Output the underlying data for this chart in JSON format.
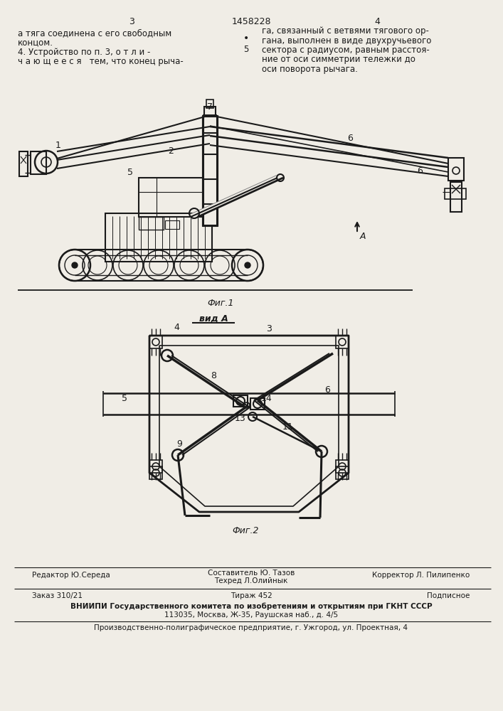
{
  "background": "#f0ede6",
  "lc": "#1a1a1a",
  "tc": "#1a1a1a",
  "page_left": "3",
  "patent": "1458228",
  "page_right": "4",
  "col1_lines": [
    "а тяга соединена с его свободным",
    "концом."
  ],
  "col2_lines": [
    "га, связанный с ветвями тягового ор-",
    "гана, выполнен в виде двухручьевого",
    "сектора с радиусом, равным расстоя-",
    "ние от оси симметрии тележки до",
    "оси поворота рычага."
  ],
  "claim4_lines": [
    "4. Устройство по п. 3, о т л и -",
    "ч а ю щ е е с я   тем, что конец рыча-"
  ],
  "num5": "5",
  "fig1_cap": "Фиг.1",
  "fig2_cap": "Фиг.2",
  "vid_a": "вид А",
  "arrow_label": "А",
  "footer_editor": "Редактор Ю.Середа",
  "footer_comp_top": "Составитель Ю. Тазов",
  "footer_comp_bot": "Техред Л.Олийнык",
  "footer_corr": "Корректор Л. Пилипенко",
  "footer_order": "Заказ 310/21",
  "footer_tirazh": "Тираж 452",
  "footer_podsip": "Подписное",
  "footer_vniipi": "ВНИИПИ Государственного комитета по изобретениям и открытиям при ГКНТ СССР",
  "footer_addr": "113035, Москва, Ж-35, Раушская наб., д. 4/5",
  "footer_fac": "Производственно-полиграфическое предприятие, г. Ужгород, ул. Проектная, 4"
}
